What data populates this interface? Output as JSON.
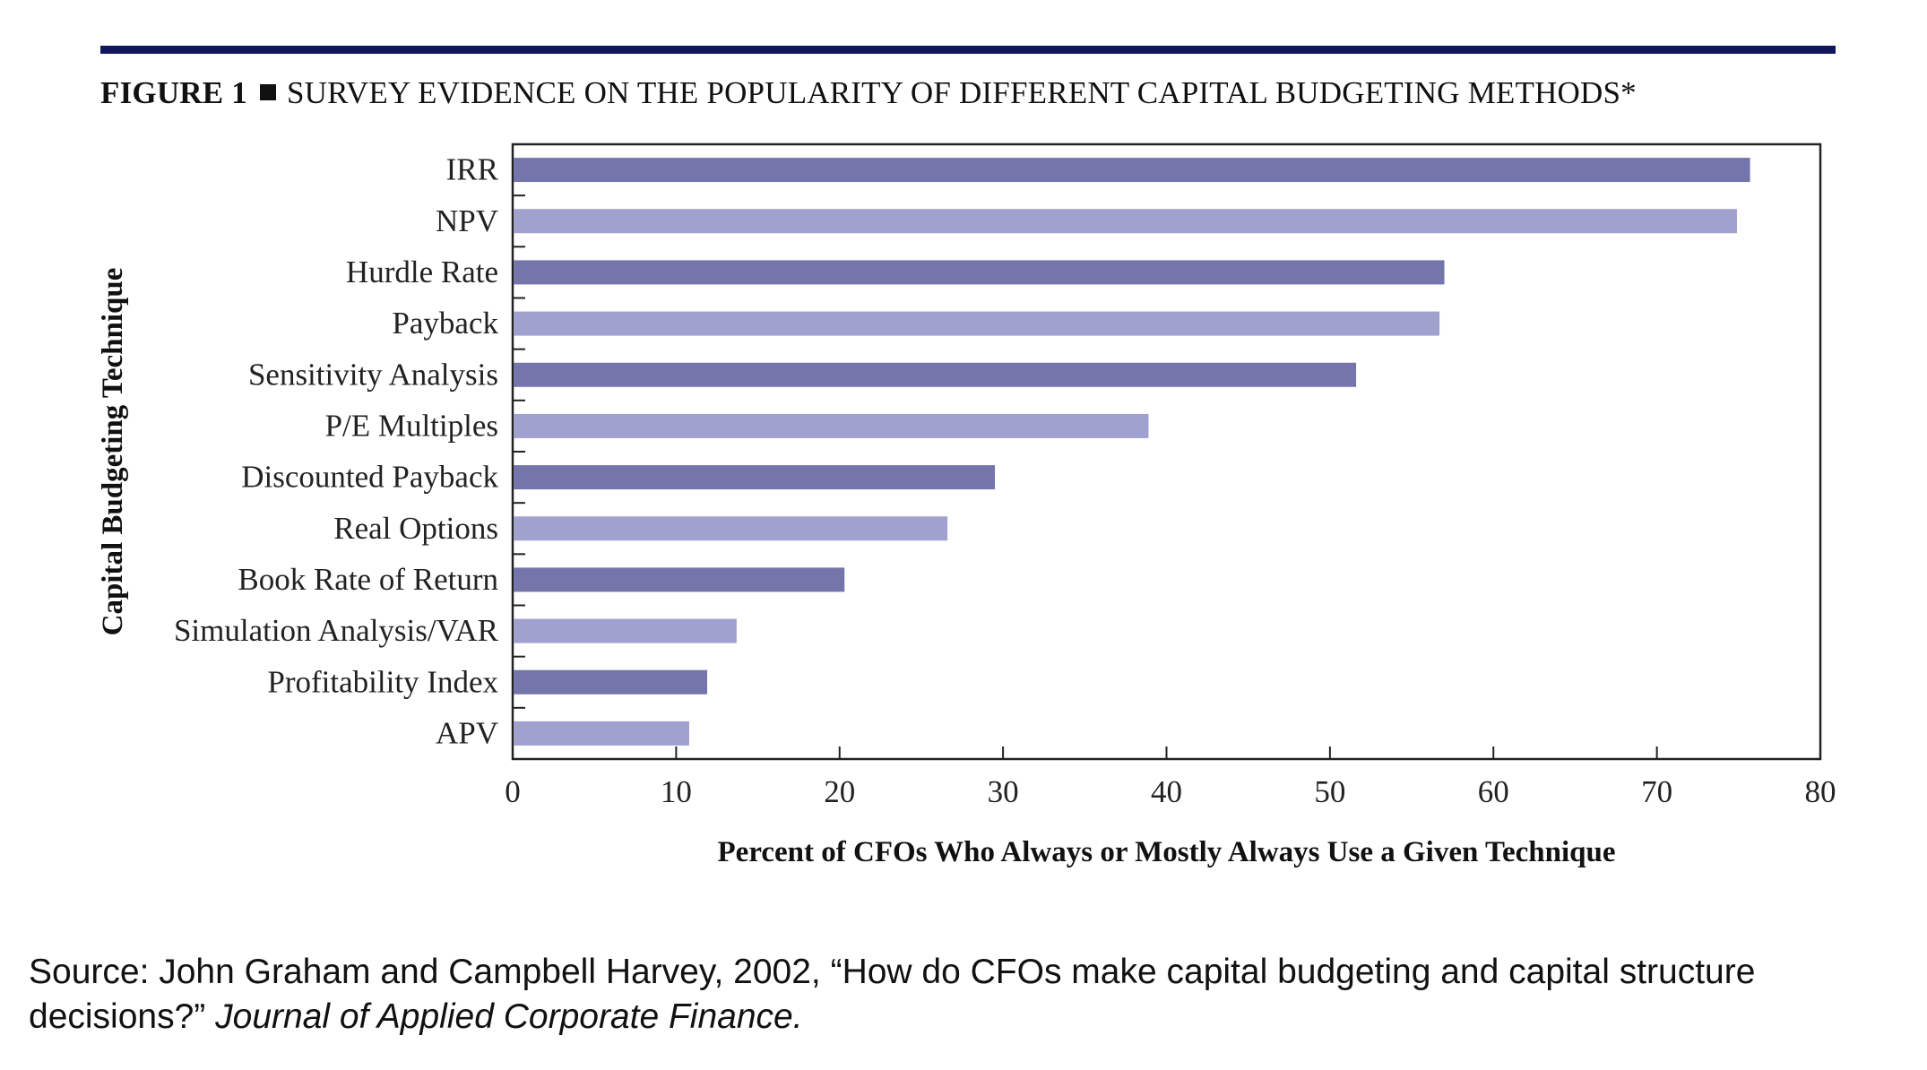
{
  "figure": {
    "label": "FIGURE 1",
    "title": "SURVEY EVIDENCE ON THE POPULARITY OF DIFFERENT CAPITAL BUDGETING METHODS*"
  },
  "chart_data": {
    "type": "bar",
    "orientation": "horizontal",
    "categories": [
      "IRR",
      "NPV",
      "Hurdle Rate",
      "Payback",
      "Sensitivity Analysis",
      "P/E Multiples",
      "Discounted Payback",
      "Real Options",
      "Book Rate of Return",
      "Simulation Analysis/VAR",
      "Profitability Index",
      "APV"
    ],
    "values": [
      75.7,
      74.9,
      57.0,
      56.7,
      51.6,
      38.9,
      29.5,
      26.6,
      20.3,
      13.7,
      11.9,
      10.8
    ],
    "xlabel": "Percent of CFOs Who Always or Mostly Always Use a Given Technique",
    "ylabel": "Capital Budgeting Technique",
    "xlim": [
      0,
      80
    ],
    "xticks": [
      "0",
      "10",
      "20",
      "30",
      "40",
      "50",
      "60",
      "70",
      "80"
    ],
    "grid": false,
    "colors": [
      "#7475ab",
      "#a1a1cf"
    ]
  },
  "source": {
    "prefix": "Source: John Graham and Campbell Harvey, 2002, “How do CFOs make capital budgeting and capital structure decisions?”",
    "journal": "Journal of Applied Corporate Finance."
  }
}
